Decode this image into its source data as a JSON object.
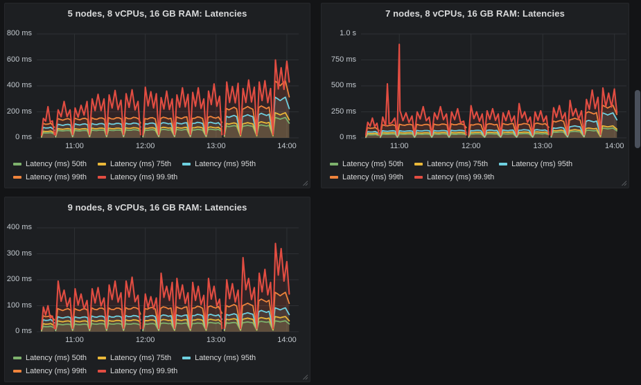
{
  "app": "grafana-dashboard",
  "theme": {
    "page_bg": "#131416",
    "panel_bg": "#1d1f22",
    "panel_border": "#26282c",
    "grid_color": "#2e3135",
    "title_color": "#d8d9da",
    "tick_color": "#c3c9cf",
    "legend_text_color": "#d8d9da",
    "scrollbar_thumb": "#4a505b"
  },
  "panels": [
    {
      "title": "5 nodes, 8 vCPUs, 16 GB RAM: Latencies",
      "chart_data": {
        "type": "line",
        "title": "5 nodes, 8 vCPUs, 16 GB RAM: Latencies",
        "unit": "ms",
        "grid": true,
        "legend_position": "bottom-left",
        "ylim": [
          0,
          800
        ],
        "y_ticks": [
          {
            "value": 0,
            "label": "0 ms"
          },
          {
            "value": 200,
            "label": "200 ms"
          },
          {
            "value": 400,
            "label": "400 ms"
          },
          {
            "value": 600,
            "label": "600 ms"
          },
          {
            "value": 800,
            "label": "800 ms"
          }
        ],
        "x_range": [
          628,
          850
        ],
        "x_ticks": [
          {
            "t": 660,
            "label": "11:00"
          },
          {
            "t": 720,
            "label": "12:00"
          },
          {
            "t": 780,
            "label": "13:00"
          },
          {
            "t": 840,
            "label": "14:00"
          }
        ],
        "series": [
          {
            "name": "Latency (ms) 50th",
            "color": "#7eb26d",
            "key": "p50"
          },
          {
            "name": "Latency (ms) 75th",
            "color": "#eab839",
            "key": "p75"
          },
          {
            "name": "Latency (ms) 95th",
            "color": "#6ed0e0",
            "key": "p95"
          },
          {
            "name": "Latency (ms) 99th",
            "color": "#ef843c",
            "key": "p99"
          },
          {
            "name": "Latency (ms) 99.9th",
            "color": "#e24d42",
            "key": "p999"
          }
        ],
        "segments": [
          {
            "t0": 632,
            "t1": 643,
            "bumps": [
              {
                "p50": 38,
                "p75": 50,
                "p95": 78,
                "p99": 108,
                "p999": [
                  150,
                  240,
                  130
                ]
              }
            ]
          },
          {
            "t0": 644,
            "t1": 716,
            "bumps": [
              {
                "p50": 55,
                "p75": 68,
                "p95": 100,
                "p99": 142,
                "p999": [
                  215,
                  280,
                  215
                ]
              },
              {
                "p50": 55,
                "p75": 68,
                "p95": 103,
                "p99": 145,
                "p999": [
                  230,
                  250,
                  280
                ]
              },
              {
                "p50": 58,
                "p75": 72,
                "p95": 106,
                "p99": 148,
                "p999": [
                  300,
                  335,
                  300
                ]
              },
              {
                "p50": 58,
                "p75": 72,
                "p95": 108,
                "p99": 150,
                "p999": [
                  330,
                  365,
                  290
                ]
              },
              {
                "p50": 60,
                "p75": 75,
                "p95": 110,
                "p99": 152,
                "p999": [
                  340,
                  370,
                  280
                ]
              }
            ]
          },
          {
            "t0": 718,
            "t1": 785,
            "bumps": [
              {
                "p50": 60,
                "p75": 75,
                "p95": 110,
                "p99": 150,
                "p999": [
                  390,
                  355,
                  340
                ]
              },
              {
                "p50": 62,
                "p75": 78,
                "p95": 112,
                "p99": 152,
                "p999": [
                  310,
                  360,
                  300
                ]
              },
              {
                "p50": 62,
                "p75": 78,
                "p95": 112,
                "p99": 155,
                "p999": [
                  330,
                  385,
                  335
                ]
              },
              {
                "p50": 62,
                "p75": 80,
                "p95": 115,
                "p99": 155,
                "p999": [
                  350,
                  385,
                  300
                ]
              },
              {
                "p50": 64,
                "p75": 80,
                "p95": 115,
                "p99": 158,
                "p999": [
                  360,
                  415,
                  320
                ]
              }
            ]
          },
          {
            "t0": 787,
            "t1": 842,
            "endRed": 430,
            "bumps": [
              {
                "p50": 90,
                "p75": 110,
                "p95": 165,
                "p99": 225,
                "p999": [
                  430,
                  395,
                  420
                ]
              },
              {
                "p50": 92,
                "p75": 112,
                "p95": 170,
                "p99": 230,
                "p999": [
                  380,
                  445,
                  390
                ]
              },
              {
                "p50": 95,
                "p75": 118,
                "p95": 180,
                "p99": 235,
                "p999": [
                  430,
                  440,
                  380
                ]
              },
              {
                "p50": 150,
                "p75": 185,
                "p95": 300,
                "p99": 420,
                "p999": [
                  600,
                  540,
                  590
                ]
              }
            ]
          }
        ]
      }
    },
    {
      "title": "7 nodes, 8 vCPUs, 16 GB RAM: Latencies",
      "chart_data": {
        "type": "line",
        "title": "7 nodes, 8 vCPUs, 16 GB RAM: Latencies",
        "unit": "ms",
        "grid": true,
        "legend_position": "bottom-left",
        "ylim": [
          0,
          1000
        ],
        "y_ticks": [
          {
            "value": 0,
            "label": "0 ms"
          },
          {
            "value": 250,
            "label": "250 ms"
          },
          {
            "value": 500,
            "label": "500 ms"
          },
          {
            "value": 750,
            "label": "750 ms"
          },
          {
            "value": 1000,
            "label": "1.0 s"
          }
        ],
        "x_range": [
          628,
          850
        ],
        "x_ticks": [
          {
            "t": 660,
            "label": "11:00"
          },
          {
            "t": 720,
            "label": "12:00"
          },
          {
            "t": 780,
            "label": "13:00"
          },
          {
            "t": 840,
            "label": "14:00"
          }
        ],
        "series": [
          {
            "name": "Latency (ms) 50th",
            "color": "#7eb26d",
            "key": "p50"
          },
          {
            "name": "Latency (ms) 75th",
            "color": "#eab839",
            "key": "p75"
          },
          {
            "name": "Latency (ms) 95th",
            "color": "#6ed0e0",
            "key": "p95"
          },
          {
            "name": "Latency (ms) 99th",
            "color": "#ef843c",
            "key": "p99"
          },
          {
            "name": "Latency (ms) 99.9th",
            "color": "#e24d42",
            "key": "p999"
          }
        ],
        "segments": [
          {
            "t0": 632,
            "t1": 643,
            "bumps": [
              {
                "p50": 30,
                "p75": 42,
                "p95": 58,
                "p99": 95,
                "p999": [
                  150,
                  190,
                  140
                ]
              }
            ]
          },
          {
            "t0": 644,
            "t1": 716,
            "spikes": [
              {
                "t": 650,
                "v": 520
              },
              {
                "t": 660,
                "v": 900
              }
            ],
            "bumps": [
              {
                "p50": 35,
                "p75": 48,
                "p95": 65,
                "p99": 120,
                "p999": [
                  200,
                  250,
                  190
                ]
              },
              {
                "p50": 35,
                "p75": 48,
                "p95": 65,
                "p99": 125,
                "p999": [
                  260,
                  240,
                  210
                ]
              },
              {
                "p50": 35,
                "p75": 48,
                "p95": 68,
                "p99": 125,
                "p999": [
                  250,
                  300,
                  200
                ]
              },
              {
                "p50": 36,
                "p75": 50,
                "p95": 68,
                "p99": 128,
                "p999": [
                  240,
                  300,
                  230
                ]
              },
              {
                "p50": 36,
                "p75": 50,
                "p95": 70,
                "p99": 130,
                "p999": [
                  250,
                  280,
                  160
                ]
              }
            ]
          },
          {
            "t0": 718,
            "t1": 785,
            "bumps": [
              {
                "p50": 38,
                "p75": 52,
                "p95": 70,
                "p99": 128,
                "p999": [
                  310,
                  250,
                  230
                ]
              },
              {
                "p50": 38,
                "p75": 52,
                "p95": 72,
                "p99": 130,
                "p999": [
                  260,
                  280,
                  230
                ]
              },
              {
                "p50": 38,
                "p75": 54,
                "p95": 72,
                "p99": 132,
                "p999": [
                  240,
                  260,
                  210
                ]
              },
              {
                "p50": 40,
                "p75": 54,
                "p95": 75,
                "p99": 132,
                "p999": [
                  330,
                  250,
                  200
                ]
              },
              {
                "p50": 40,
                "p75": 55,
                "p95": 75,
                "p99": 135,
                "p999": [
                  250,
                  260,
                  210
                ]
              }
            ]
          },
          {
            "t0": 787,
            "t1": 842,
            "endRed": 240,
            "bumps": [
              {
                "p50": 55,
                "p75": 70,
                "p95": 95,
                "p99": 160,
                "p999": [
                  290,
                  310,
                  240
                ]
              },
              {
                "p50": 60,
                "p75": 75,
                "p95": 110,
                "p99": 180,
                "p999": [
                  360,
                  280,
                  260
                ]
              },
              {
                "p50": 70,
                "p75": 90,
                "p95": 160,
                "p99": 240,
                "p999": [
                  370,
                  460,
                  390
                ]
              },
              {
                "p50": 90,
                "p75": 110,
                "p95": 230,
                "p99": 300,
                "p999": [
                  480,
                  430,
                  470
                ]
              }
            ]
          }
        ]
      }
    },
    {
      "title": "9 nodes, 8 vCPUs, 16 GB RAM: Latencies",
      "chart_data": {
        "type": "line",
        "title": "9 nodes, 8 vCPUs, 16 GB RAM: Latencies",
        "unit": "ms",
        "grid": true,
        "legend_position": "bottom-left",
        "ylim": [
          0,
          400
        ],
        "y_ticks": [
          {
            "value": 0,
            "label": "0 ms"
          },
          {
            "value": 100,
            "label": "100 ms"
          },
          {
            "value": 200,
            "label": "200 ms"
          },
          {
            "value": 300,
            "label": "300 ms"
          },
          {
            "value": 400,
            "label": "400 ms"
          }
        ],
        "x_range": [
          628,
          850
        ],
        "x_ticks": [
          {
            "t": 660,
            "label": "11:00"
          },
          {
            "t": 720,
            "label": "12:00"
          },
          {
            "t": 780,
            "label": "13:00"
          },
          {
            "t": 840,
            "label": "14:00"
          }
        ],
        "series": [
          {
            "name": "Latency (ms) 50th",
            "color": "#7eb26d",
            "key": "p50"
          },
          {
            "name": "Latency (ms) 75th",
            "color": "#eab839",
            "key": "p75"
          },
          {
            "name": "Latency (ms) 95th",
            "color": "#6ed0e0",
            "key": "p95"
          },
          {
            "name": "Latency (ms) 99th",
            "color": "#ef843c",
            "key": "p99"
          },
          {
            "name": "Latency (ms) 99.9th",
            "color": "#e24d42",
            "key": "p999"
          }
        ],
        "segments": [
          {
            "t0": 632,
            "t1": 643,
            "bumps": [
              {
                "p50": 20,
                "p75": 30,
                "p95": 45,
                "p99": 60,
                "p999": [
                  95,
                  100,
                  60
                ]
              }
            ]
          },
          {
            "t0": 644,
            "t1": 716,
            "bumps": [
              {
                "p50": 28,
                "p75": 40,
                "p95": 55,
                "p99": 85,
                "p999": [
                  195,
                  160,
                  130
                ]
              },
              {
                "p50": 28,
                "p75": 40,
                "p95": 55,
                "p99": 85,
                "p999": [
                  165,
                  145,
                  120
                ]
              },
              {
                "p50": 30,
                "p75": 42,
                "p95": 58,
                "p99": 88,
                "p999": [
                  165,
                  170,
                  130
                ]
              },
              {
                "p50": 30,
                "p75": 42,
                "p95": 58,
                "p99": 88,
                "p999": [
                  180,
                  195,
                  150
                ]
              },
              {
                "p50": 30,
                "p75": 44,
                "p95": 60,
                "p99": 90,
                "p999": [
                  195,
                  210,
                  140
                ]
              }
            ]
          },
          {
            "t0": 718,
            "t1": 785,
            "bumps": [
              {
                "p50": 30,
                "p75": 44,
                "p95": 60,
                "p99": 90,
                "p999": [
                  145,
                  135,
                  130
                ]
              },
              {
                "p50": 32,
                "p75": 45,
                "p95": 62,
                "p99": 92,
                "p999": [
                  225,
                  175,
                  190
                ]
              },
              {
                "p50": 32,
                "p75": 45,
                "p95": 62,
                "p99": 92,
                "p999": [
                  205,
                  180,
                  150
                ]
              },
              {
                "p50": 32,
                "p75": 46,
                "p95": 64,
                "p99": 94,
                "p999": [
                  190,
                  175,
                  140
                ]
              },
              {
                "p50": 34,
                "p75": 46,
                "p95": 64,
                "p99": 95,
                "p999": [
                  205,
                  175,
                  125
                ]
              }
            ]
          },
          {
            "t0": 787,
            "t1": 842,
            "endRed": 145,
            "bumps": [
              {
                "p50": 34,
                "p75": 48,
                "p95": 66,
                "p99": 100,
                "p999": [
                  200,
                  185,
                  160
                ]
              },
              {
                "p50": 36,
                "p75": 50,
                "p95": 70,
                "p99": 105,
                "p999": [
                  285,
                  205,
                  170
                ]
              },
              {
                "p50": 38,
                "p75": 52,
                "p95": 78,
                "p99": 120,
                "p999": [
                  225,
                  240,
                  190
                ]
              },
              {
                "p50": 40,
                "p75": 56,
                "p95": 88,
                "p99": 145,
                "p999": [
                  340,
                  320,
                  270
                ]
              }
            ]
          }
        ]
      }
    }
  ],
  "scrollbar": {
    "visible": true,
    "orientation": "vertical"
  }
}
